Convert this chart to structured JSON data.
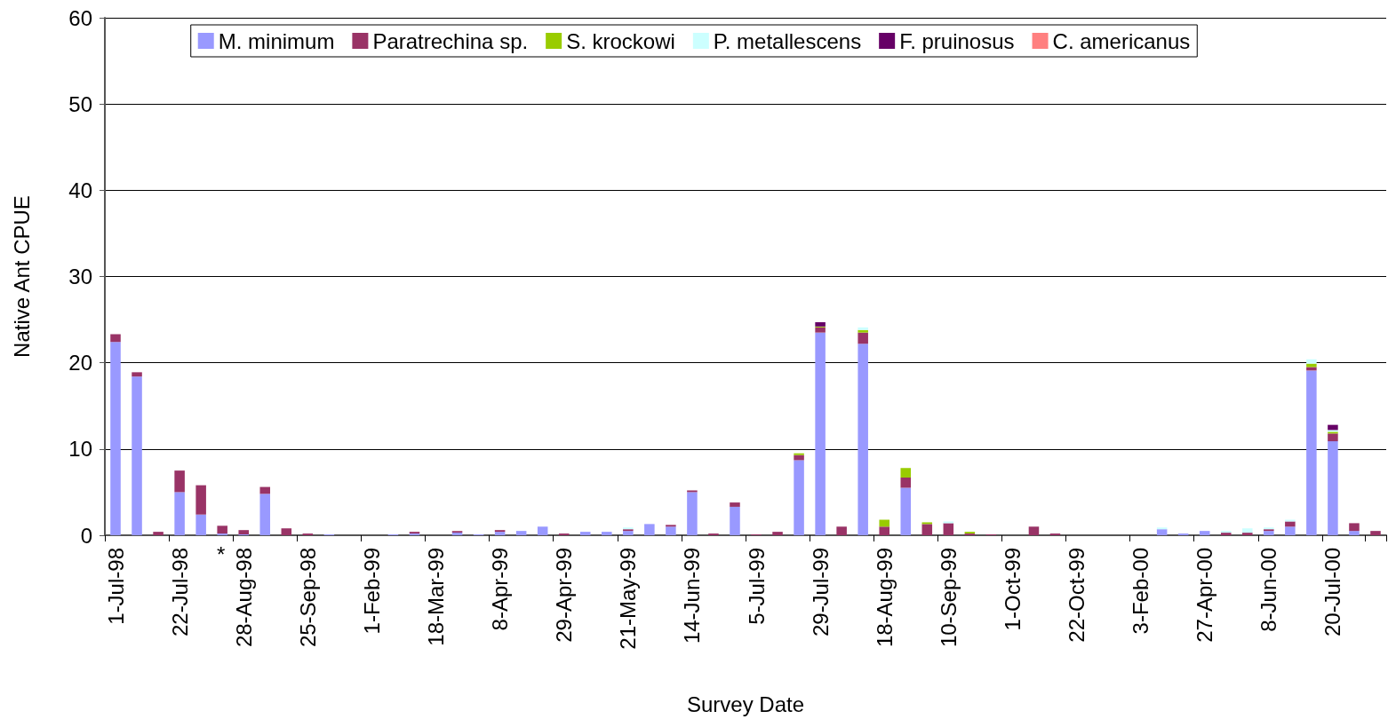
{
  "chart_data": {
    "type": "bar",
    "stacked": true,
    "xlabel": "Survey Date",
    "ylabel": "Native Ant CPUE",
    "categories": [
      "1-Jul-98",
      null,
      null,
      "22-Jul-98",
      null,
      null,
      "28-Aug-98",
      null,
      null,
      "25-Sep-98",
      null,
      null,
      "1-Feb-99",
      null,
      null,
      "18-Mar-99",
      null,
      null,
      "8-Apr-99",
      null,
      null,
      "29-Apr-99",
      null,
      null,
      "21-May-99",
      null,
      null,
      "14-Jun-99",
      null,
      null,
      "5-Jul-99",
      null,
      null,
      "29-Jul-99",
      null,
      null,
      "18-Aug-99",
      null,
      null,
      "10-Sep-99",
      null,
      null,
      "1-Oct-99",
      null,
      null,
      "22-Oct-99",
      null,
      null,
      "3-Feb-00",
      null,
      null,
      "27-Apr-00",
      null,
      null,
      "8-Jun-00",
      null,
      null,
      "20-Jul-00",
      null,
      null
    ],
    "series": [
      {
        "name": "M. minimum",
        "color": "#9999ff",
        "values": [
          22.4,
          18.4,
          0,
          5.0,
          2.4,
          0.2,
          0.1,
          4.8,
          0,
          0,
          0.1,
          0,
          0,
          0.1,
          0.2,
          0,
          0.3,
          0.1,
          0.4,
          0.5,
          1.0,
          0,
          0.4,
          0.4,
          0.5,
          1.3,
          1.0,
          5.0,
          0,
          3.3,
          0,
          0,
          8.7,
          23.5,
          0,
          22.2,
          0,
          5.5,
          0,
          0,
          0,
          0,
          0,
          0,
          0,
          0,
          0,
          0,
          0,
          0.7,
          0.2,
          0.5,
          0,
          0,
          0.5,
          1.0,
          19.1,
          10.9,
          0.5,
          0
        ]
      },
      {
        "name": "Paratrechina sp.",
        "color": "#993366",
        "values": [
          0.9,
          0.5,
          0.4,
          2.5,
          3.4,
          0.9,
          0.5,
          0.8,
          0.8,
          0.2,
          0,
          0,
          0,
          0,
          0.2,
          0,
          0.2,
          0,
          0.2,
          0,
          0,
          0.2,
          0,
          0,
          0.2,
          0,
          0.2,
          0.2,
          0.2,
          0.5,
          0.1,
          0.4,
          0.6,
          0.6,
          1.0,
          1.3,
          1.0,
          1.2,
          1.3,
          1.4,
          0.2,
          0.1,
          0,
          1.0,
          0.2,
          0,
          0,
          0,
          0,
          0,
          0,
          0,
          0.3,
          0.3,
          0.2,
          0.6,
          0.4,
          0.9,
          0.9,
          0.5
        ]
      },
      {
        "name": "S. krockowi",
        "color": "#99cc00",
        "values": [
          0,
          0,
          0,
          0,
          0,
          0,
          0,
          0,
          0,
          0,
          0,
          0,
          0,
          0,
          0,
          0,
          0,
          0,
          0,
          0,
          0,
          0,
          0,
          0,
          0,
          0,
          0,
          0,
          0,
          0,
          0,
          0,
          0.2,
          0.1,
          0,
          0.3,
          0.8,
          1.1,
          0.2,
          0,
          0.2,
          0,
          0,
          0,
          0,
          0,
          0,
          0,
          0,
          0,
          0,
          0,
          0,
          0,
          0,
          0,
          0.4,
          0.2,
          0,
          0
        ]
      },
      {
        "name": "P. metallescens",
        "color": "#ccffff",
        "values": [
          0,
          0,
          0,
          0,
          0,
          0,
          0,
          0,
          0,
          0,
          0,
          0,
          0,
          0,
          0,
          0,
          0,
          0,
          0,
          0,
          0,
          0,
          0,
          0,
          0.2,
          0,
          0,
          0,
          0,
          0,
          0,
          0,
          0,
          0,
          0,
          0.3,
          0,
          0,
          0,
          0.2,
          0,
          0,
          0,
          0,
          0,
          0,
          null,
          0,
          0,
          0.2,
          0,
          0,
          0.2,
          0.5,
          0.2,
          0.2,
          0.5,
          0.2,
          0,
          0
        ]
      },
      {
        "name": "F. pruinosus",
        "color": "#660066",
        "values": [
          0,
          0,
          0,
          0,
          0,
          0,
          0,
          0,
          0,
          0,
          0,
          0,
          0,
          0,
          0,
          0,
          0,
          0,
          0,
          0,
          0,
          0,
          0,
          0,
          0,
          0,
          0,
          0,
          0,
          0,
          0,
          0,
          0,
          0.5,
          0,
          0,
          0,
          0,
          0,
          0,
          0,
          0,
          0,
          0,
          0,
          0,
          0,
          0,
          0,
          0,
          0,
          0,
          0,
          0,
          0,
          0,
          0,
          0.6,
          0,
          0
        ]
      },
      {
        "name": "C. americanus",
        "color": "#ff8080",
        "values": [
          0,
          0,
          0,
          0,
          0,
          0,
          0,
          0,
          0,
          0,
          0,
          0,
          0,
          0,
          0,
          0,
          0,
          0,
          0,
          0,
          0,
          0,
          0,
          0,
          0,
          0,
          0,
          0,
          0,
          0,
          0,
          0,
          0,
          0,
          0,
          0,
          0,
          0,
          0,
          0,
          0,
          0,
          0,
          0,
          0,
          0,
          0,
          0,
          0,
          0,
          0,
          0,
          0,
          0,
          0,
          0,
          0,
          0,
          0,
          0
        ]
      }
    ],
    "ylim": [
      0,
      60
    ],
    "yticks": [
      0,
      10,
      20,
      30,
      40,
      50,
      60
    ],
    "grid": "y",
    "legend": "top",
    "annotations": [
      "*"
    ]
  }
}
